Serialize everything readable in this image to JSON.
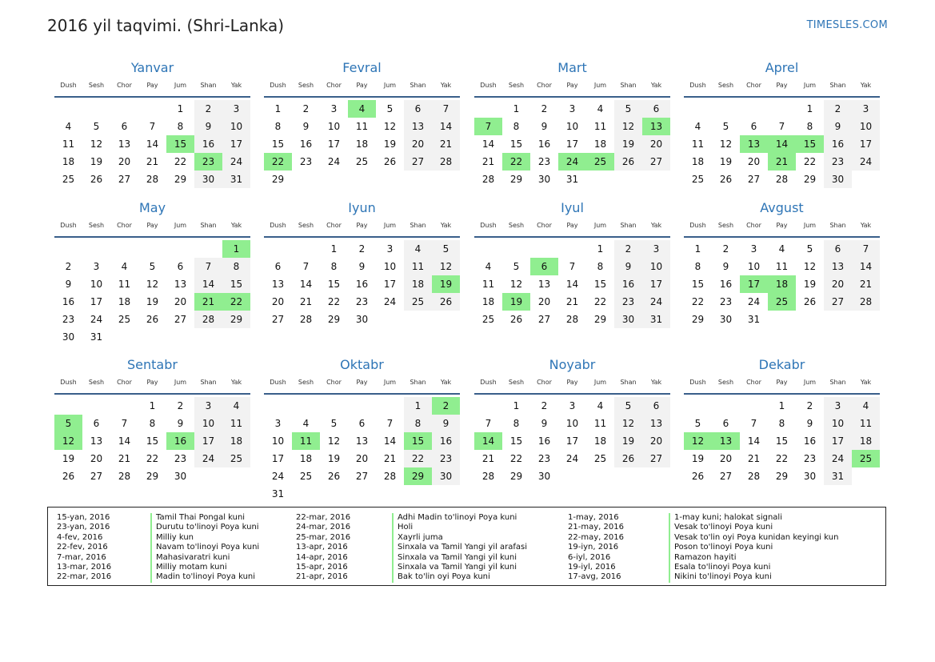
{
  "title": "2016 yil taqvimi. (Shri-Lanka)",
  "brand": "TIMESLES.COM",
  "weekdays": [
    "Dush",
    "Sesh",
    "Chor",
    "Pay",
    "Jum",
    "Shan",
    "Yak"
  ],
  "colors": {
    "accent": "#2e75b6",
    "holiday": "#90ee90",
    "weekend": "#f2f2f2"
  },
  "months": [
    {
      "name": "Yanvar",
      "offset": 4,
      "days": 31,
      "holidays": [
        15,
        23
      ]
    },
    {
      "name": "Fevral",
      "offset": 0,
      "days": 29,
      "holidays": [
        4,
        22
      ]
    },
    {
      "name": "Mart",
      "offset": 1,
      "days": 31,
      "holidays": [
        7,
        13,
        22,
        24,
        25
      ]
    },
    {
      "name": "Aprel",
      "offset": 4,
      "days": 30,
      "holidays": [
        13,
        14,
        15,
        21
      ]
    },
    {
      "name": "May",
      "offset": 6,
      "days": 31,
      "holidays": [
        1,
        21,
        22
      ]
    },
    {
      "name": "Iyun",
      "offset": 2,
      "days": 30,
      "holidays": [
        19
      ]
    },
    {
      "name": "Iyul",
      "offset": 4,
      "days": 31,
      "holidays": [
        6,
        19
      ]
    },
    {
      "name": "Avgust",
      "offset": 0,
      "days": 31,
      "holidays": [
        17,
        18,
        25
      ]
    },
    {
      "name": "Sentabr",
      "offset": 3,
      "days": 30,
      "holidays": [
        5,
        12,
        16
      ]
    },
    {
      "name": "Oktabr",
      "offset": 5,
      "days": 31,
      "holidays": [
        2,
        11,
        15,
        29
      ]
    },
    {
      "name": "Noyabr",
      "offset": 1,
      "days": 30,
      "holidays": [
        14
      ]
    },
    {
      "name": "Dekabr",
      "offset": 3,
      "days": 31,
      "holidays": [
        12,
        13,
        25
      ]
    }
  ],
  "legend": [
    [
      {
        "date": "15-yan, 2016",
        "name": "Tamil Thai Pongal kuni"
      },
      {
        "date": "23-yan, 2016",
        "name": "Durutu to'linoyi Poya kuni"
      },
      {
        "date": "4-fev, 2016",
        "name": "Milliy kun"
      },
      {
        "date": "22-fev, 2016",
        "name": "Navam to'linoyi Poya kuni"
      },
      {
        "date": "7-mar, 2016",
        "name": "Mahasivaratri kuni"
      },
      {
        "date": "13-mar, 2016",
        "name": "Milliy motam kuni"
      },
      {
        "date": "22-mar, 2016",
        "name": "Madin to'linoyi Poya kuni"
      }
    ],
    [
      {
        "date": "22-mar, 2016",
        "name": "Adhi Madin to'linoyi Poya kuni"
      },
      {
        "date": "24-mar, 2016",
        "name": "Holi"
      },
      {
        "date": "25-mar, 2016",
        "name": "Xayrli juma"
      },
      {
        "date": "13-apr, 2016",
        "name": "Sinxala va Tamil Yangi yil arafasi"
      },
      {
        "date": "14-apr, 2016",
        "name": "Sinxala va Tamil Yangi yil kuni"
      },
      {
        "date": "15-apr, 2016",
        "name": "Sinxala va Tamil Yangi yil kuni"
      },
      {
        "date": "21-apr, 2016",
        "name": "Bak to'lin oyi Poya kuni"
      }
    ],
    [
      {
        "date": "1-may, 2016",
        "name": "1-may kuni; halokat signali"
      },
      {
        "date": "21-may, 2016",
        "name": "Vesak to'linoyi Poya kuni"
      },
      {
        "date": "22-may, 2016",
        "name": "Vesak to'lin oyi Poya kunidan keyingi kun"
      },
      {
        "date": "19-iyn, 2016",
        "name": "Poson to'linoyi Poya kuni"
      },
      {
        "date": "6-iyl, 2016",
        "name": "Ramazon hayiti"
      },
      {
        "date": "19-iyl, 2016",
        "name": "Esala to'linoyi Poya kuni"
      },
      {
        "date": "17-avg, 2016",
        "name": "Nikini to'linoyi Poya kuni"
      }
    ]
  ]
}
